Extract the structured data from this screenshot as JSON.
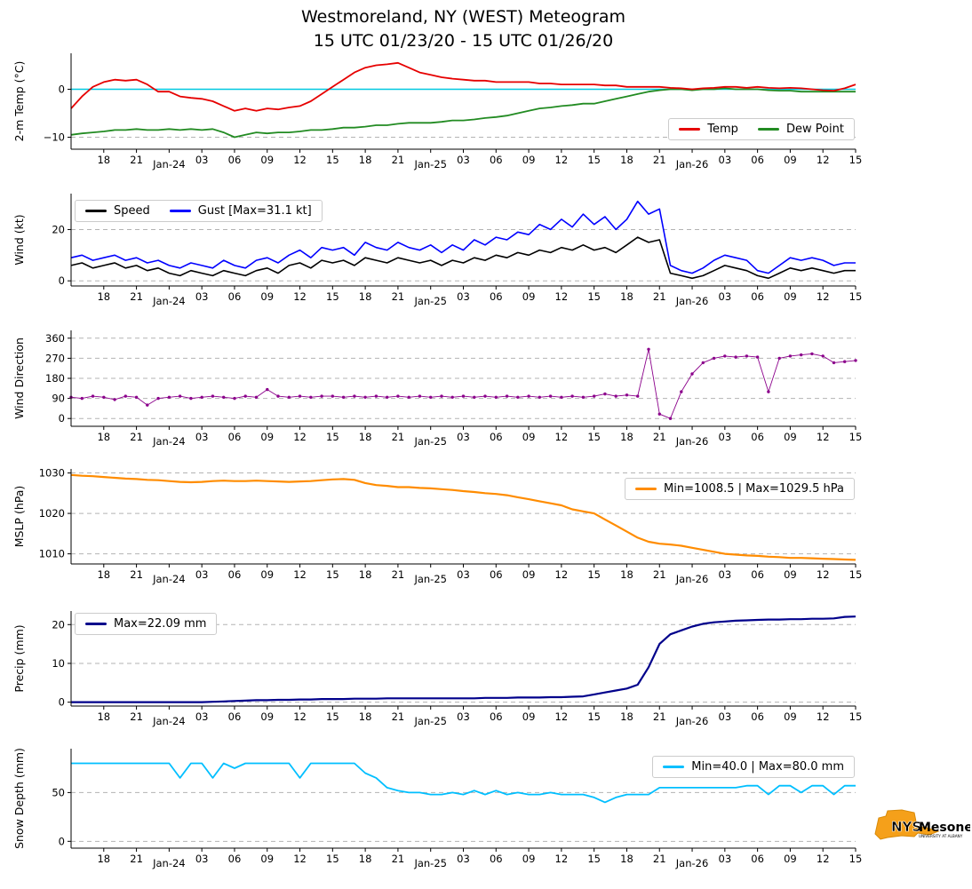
{
  "header": {
    "title_line1": "Westmoreland, NY (WEST) Meteogram",
    "title_line2": "15 UTC 01/23/20 - 15 UTC 01/26/20"
  },
  "time_axis": {
    "range_hours": [
      0,
      72
    ],
    "ticks": [
      {
        "t": 3,
        "label": "18"
      },
      {
        "t": 6,
        "label": "21"
      },
      {
        "t": 9,
        "label": "Jan-24",
        "date": true
      },
      {
        "t": 12,
        "label": "03"
      },
      {
        "t": 15,
        "label": "06"
      },
      {
        "t": 18,
        "label": "09"
      },
      {
        "t": 21,
        "label": "12"
      },
      {
        "t": 24,
        "label": "15"
      },
      {
        "t": 27,
        "label": "18"
      },
      {
        "t": 30,
        "label": "21"
      },
      {
        "t": 33,
        "label": "Jan-25",
        "date": true
      },
      {
        "t": 36,
        "label": "03"
      },
      {
        "t": 39,
        "label": "06"
      },
      {
        "t": 42,
        "label": "09"
      },
      {
        "t": 45,
        "label": "12"
      },
      {
        "t": 48,
        "label": "15"
      },
      {
        "t": 51,
        "label": "18"
      },
      {
        "t": 54,
        "label": "21"
      },
      {
        "t": 57,
        "label": "Jan-26",
        "date": true
      },
      {
        "t": 60,
        "label": "03"
      },
      {
        "t": 63,
        "label": "06"
      },
      {
        "t": 66,
        "label": "09"
      },
      {
        "t": 69,
        "label": "12"
      },
      {
        "t": 72,
        "label": "15"
      }
    ]
  },
  "chart_data": [
    {
      "id": "temp",
      "type": "line",
      "ylabel": "2-m Temp (°C)",
      "ylim": [
        -12.5,
        7.5
      ],
      "yticks": [
        {
          "v": 0,
          "label": "0"
        },
        {
          "v": -10,
          "label": "−10"
        }
      ],
      "zero_line": {
        "value": 0,
        "color": "#00c8e0"
      },
      "series": [
        {
          "name": "Dew Point",
          "color": "#228b22",
          "width": 1.8,
          "values": [
            -9.5,
            -9.2,
            -9.0,
            -8.8,
            -8.5,
            -8.5,
            -8.3,
            -8.5,
            -8.5,
            -8.3,
            -8.5,
            -8.3,
            -8.5,
            -8.3,
            -9.0,
            -10.0,
            -9.5,
            -9.0,
            -9.2,
            -9.0,
            -9.0,
            -8.8,
            -8.5,
            -8.5,
            -8.3,
            -8.0,
            -8.0,
            -7.8,
            -7.5,
            -7.5,
            -7.2,
            -7.0,
            -7.0,
            -7.0,
            -6.8,
            -6.5,
            -6.5,
            -6.3,
            -6.0,
            -5.8,
            -5.5,
            -5.0,
            -4.5,
            -4.0,
            -3.8,
            -3.5,
            -3.3,
            -3.0,
            -3.0,
            -2.5,
            -2.0,
            -1.5,
            -1.0,
            -0.5,
            -0.2,
            0.0,
            0.0,
            -0.2,
            0.0,
            0.0,
            0.2,
            0.0,
            0.0,
            0.0,
            -0.2,
            -0.3,
            -0.3,
            -0.5,
            -0.5,
            -0.5,
            -0.5,
            -0.5,
            -0.5
          ]
        },
        {
          "name": "Temp",
          "color": "#e60000",
          "width": 1.8,
          "values": [
            -4.0,
            -1.5,
            0.5,
            1.5,
            2.0,
            1.8,
            2.0,
            1.0,
            -0.5,
            -0.5,
            -1.5,
            -1.8,
            -2.0,
            -2.5,
            -3.5,
            -4.5,
            -4.0,
            -4.5,
            -4.0,
            -4.2,
            -3.8,
            -3.5,
            -2.5,
            -1.0,
            0.5,
            2.0,
            3.5,
            4.5,
            5.0,
            5.2,
            5.5,
            4.5,
            3.5,
            3.0,
            2.5,
            2.2,
            2.0,
            1.8,
            1.8,
            1.5,
            1.5,
            1.5,
            1.5,
            1.2,
            1.2,
            1.0,
            1.0,
            1.0,
            1.0,
            0.8,
            0.8,
            0.5,
            0.5,
            0.5,
            0.5,
            0.3,
            0.2,
            0.0,
            0.2,
            0.3,
            0.5,
            0.5,
            0.3,
            0.5,
            0.3,
            0.2,
            0.3,
            0.2,
            0.0,
            -0.2,
            -0.3,
            0.2,
            1.0
          ]
        }
      ],
      "legend": {
        "position": "bottom-right",
        "entries": [
          {
            "label": "Temp",
            "color": "#e60000"
          },
          {
            "label": "Dew Point",
            "color": "#228b22"
          }
        ]
      }
    },
    {
      "id": "wind",
      "type": "line",
      "ylabel": "Wind (kt)",
      "ylim": [
        -2,
        34
      ],
      "yticks": [
        {
          "v": 0,
          "label": "0"
        },
        {
          "v": 20,
          "label": "20"
        }
      ],
      "series": [
        {
          "name": "Gust",
          "color": "#0000ff",
          "width": 1.6,
          "values": [
            9,
            10,
            8,
            9,
            10,
            8,
            9,
            7,
            8,
            6,
            5,
            7,
            6,
            5,
            8,
            6,
            5,
            8,
            9,
            7,
            10,
            12,
            9,
            13,
            12,
            13,
            10,
            15,
            13,
            12,
            15,
            13,
            12,
            14,
            11,
            14,
            12,
            16,
            14,
            17,
            16,
            19,
            18,
            22,
            20,
            24,
            21,
            26,
            22,
            25,
            20,
            24,
            31,
            26,
            28,
            6,
            4,
            3,
            5,
            8,
            10,
            9,
            8,
            4,
            3,
            6,
            9,
            8,
            9,
            8,
            6,
            7,
            7
          ]
        },
        {
          "name": "Speed",
          "color": "#000000",
          "width": 1.6,
          "values": [
            6,
            7,
            5,
            6,
            7,
            5,
            6,
            4,
            5,
            3,
            2,
            4,
            3,
            2,
            4,
            3,
            2,
            4,
            5,
            3,
            6,
            7,
            5,
            8,
            7,
            8,
            6,
            9,
            8,
            7,
            9,
            8,
            7,
            8,
            6,
            8,
            7,
            9,
            8,
            10,
            9,
            11,
            10,
            12,
            11,
            13,
            12,
            14,
            12,
            13,
            11,
            14,
            17,
            15,
            16,
            3,
            2,
            1,
            2,
            4,
            6,
            5,
            4,
            2,
            1,
            3,
            5,
            4,
            5,
            4,
            3,
            4,
            4
          ]
        }
      ],
      "legend": {
        "position": "top-left",
        "entries": [
          {
            "label": "Speed",
            "color": "#000000"
          },
          {
            "label": "Gust [Max=31.1 kt]",
            "color": "#0000ff"
          }
        ]
      }
    },
    {
      "id": "wind-direction",
      "type": "scatter",
      "ylabel": "Wind Direction",
      "ylim": [
        -35,
        395
      ],
      "yticks": [
        {
          "v": 0,
          "label": "0"
        },
        {
          "v": 90,
          "label": "90"
        },
        {
          "v": 180,
          "label": "180"
        },
        {
          "v": 270,
          "label": "270"
        },
        {
          "v": 360,
          "label": "360"
        }
      ],
      "series": [
        {
          "name": "Direction",
          "color": "#8b008b",
          "width": 0.9,
          "marker": true,
          "values": [
            95,
            90,
            100,
            95,
            85,
            100,
            95,
            60,
            90,
            95,
            100,
            90,
            95,
            100,
            95,
            90,
            100,
            95,
            130,
            100,
            95,
            100,
            95,
            100,
            100,
            95,
            100,
            95,
            100,
            95,
            100,
            95,
            100,
            95,
            100,
            95,
            100,
            95,
            100,
            95,
            100,
            95,
            100,
            95,
            100,
            95,
            100,
            95,
            100,
            110,
            100,
            105,
            100,
            310,
            20,
            0,
            120,
            200,
            250,
            270,
            280,
            275,
            280,
            275,
            120,
            270,
            280,
            285,
            290,
            280,
            250,
            255,
            260
          ]
        }
      ]
    },
    {
      "id": "mslp",
      "type": "line",
      "ylabel": "MSLP (hPa)",
      "ylim": [
        1007.5,
        1031
      ],
      "yticks": [
        {
          "v": 1010,
          "label": "1010"
        },
        {
          "v": 1020,
          "label": "1020"
        },
        {
          "v": 1030,
          "label": "1030"
        }
      ],
      "series": [
        {
          "name": "MSLP",
          "color": "#ff8c00",
          "width": 2.2,
          "values": [
            1029.5,
            1029.3,
            1029.2,
            1029.0,
            1028.8,
            1028.6,
            1028.5,
            1028.3,
            1028.2,
            1028.0,
            1027.8,
            1027.7,
            1027.8,
            1028.0,
            1028.1,
            1028.0,
            1028.0,
            1028.1,
            1028.0,
            1027.9,
            1027.8,
            1027.9,
            1028.0,
            1028.2,
            1028.4,
            1028.5,
            1028.3,
            1027.5,
            1027.0,
            1026.8,
            1026.5,
            1026.5,
            1026.3,
            1026.2,
            1026.0,
            1025.8,
            1025.5,
            1025.3,
            1025.0,
            1024.8,
            1024.5,
            1024.0,
            1023.5,
            1023.0,
            1022.5,
            1022.0,
            1021.0,
            1020.5,
            1020.0,
            1018.5,
            1017.0,
            1015.5,
            1014.0,
            1013.0,
            1012.5,
            1012.3,
            1012.0,
            1011.5,
            1011.0,
            1010.5,
            1010.0,
            1009.8,
            1009.6,
            1009.5,
            1009.3,
            1009.2,
            1009.0,
            1009.0,
            1008.9,
            1008.8,
            1008.7,
            1008.6,
            1008.5
          ]
        }
      ],
      "legend": {
        "position": "top-right",
        "entries": [
          {
            "label": "Min=1008.5 | Max=1029.5 hPa",
            "color": "#ff8c00"
          }
        ]
      }
    },
    {
      "id": "precip",
      "type": "line",
      "ylabel": "Precip (mm)",
      "ylim": [
        -1,
        23.5
      ],
      "yticks": [
        {
          "v": 0,
          "label": "0"
        },
        {
          "v": 10,
          "label": "10"
        },
        {
          "v": 20,
          "label": "20"
        }
      ],
      "series": [
        {
          "name": "Precip",
          "color": "#00008b",
          "width": 2.2,
          "values": [
            0,
            0,
            0,
            0,
            0,
            0,
            0,
            0,
            0,
            0,
            0,
            0,
            0,
            0.1,
            0.2,
            0.3,
            0.4,
            0.5,
            0.5,
            0.6,
            0.6,
            0.7,
            0.7,
            0.8,
            0.8,
            0.8,
            0.9,
            0.9,
            0.9,
            1.0,
            1.0,
            1.0,
            1.0,
            1.0,
            1.0,
            1.0,
            1.0,
            1.0,
            1.1,
            1.1,
            1.1,
            1.2,
            1.2,
            1.2,
            1.3,
            1.3,
            1.4,
            1.5,
            2.0,
            2.5,
            3.0,
            3.5,
            4.5,
            9.0,
            15.0,
            17.5,
            18.5,
            19.5,
            20.2,
            20.6,
            20.8,
            21.0,
            21.1,
            21.2,
            21.3,
            21.3,
            21.4,
            21.4,
            21.5,
            21.5,
            21.6,
            22.0,
            22.09
          ]
        }
      ],
      "legend": {
        "position": "top-left",
        "entries": [
          {
            "label": "Max=22.09 mm",
            "color": "#00008b"
          }
        ]
      }
    },
    {
      "id": "snow-depth",
      "type": "line",
      "ylabel": "Snow Depth (mm)",
      "ylim": [
        -7,
        95
      ],
      "yticks": [
        {
          "v": 0,
          "label": "0"
        },
        {
          "v": 50,
          "label": "50"
        }
      ],
      "series": [
        {
          "name": "Snow Depth",
          "color": "#00bfff",
          "width": 1.8,
          "values": [
            80,
            80,
            80,
            80,
            80,
            80,
            80,
            80,
            80,
            80,
            65,
            80,
            80,
            65,
            80,
            75,
            80,
            80,
            80,
            80,
            80,
            65,
            80,
            80,
            80,
            80,
            80,
            70,
            65,
            55,
            52,
            50,
            50,
            48,
            48,
            50,
            48,
            52,
            48,
            52,
            48,
            50,
            48,
            48,
            50,
            48,
            48,
            48,
            45,
            40,
            45,
            48,
            48,
            48,
            55,
            55,
            55,
            55,
            55,
            55,
            55,
            55,
            57,
            57,
            48,
            57,
            57,
            50,
            57,
            57,
            48,
            57,
            57
          ]
        }
      ],
      "legend": {
        "position": "top-right",
        "entries": [
          {
            "label": "Min=40.0 | Max=80.0 mm",
            "color": "#00bfff"
          }
        ]
      }
    }
  ],
  "logo": {
    "nys": "NYS",
    "mesonet": "Mesonet",
    "sub": "UNIVERSITY AT ALBANY"
  }
}
